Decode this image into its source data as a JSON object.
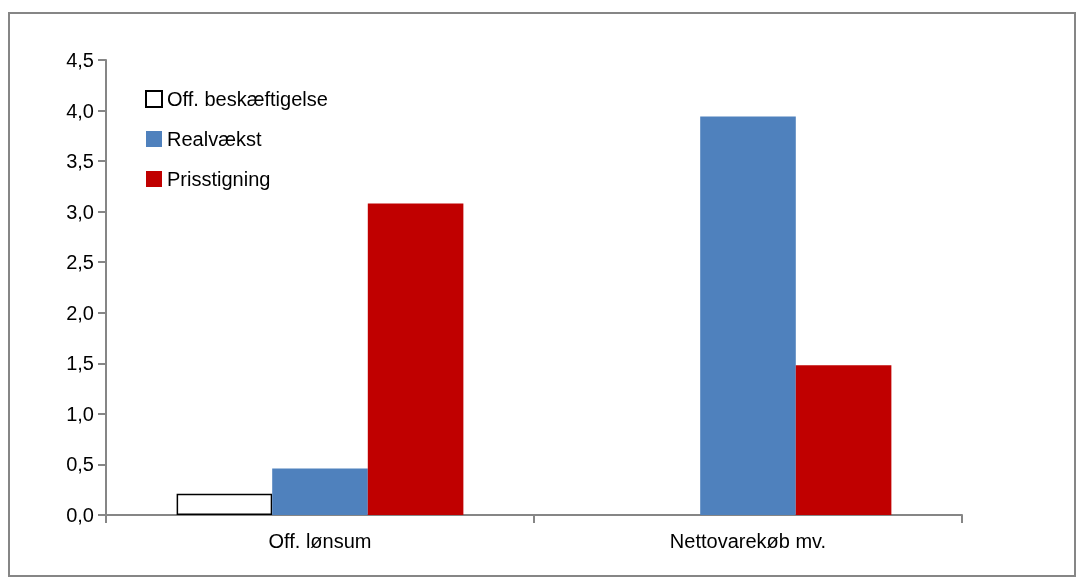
{
  "chart_data": {
    "type": "bar",
    "categories": [
      "Off. lønsum",
      "Nettovarekøb mv."
    ],
    "series": [
      {
        "name": "Off. beskæftigelse",
        "color": "#ffffff",
        "values": [
          0.21,
          null
        ]
      },
      {
        "name": "Realvækst",
        "color": "#4f81bd",
        "values": [
          0.46,
          3.94
        ]
      },
      {
        "name": "Prisstigning",
        "color": "#c00000",
        "values": [
          3.08,
          1.48
        ]
      }
    ],
    "ylim": [
      0,
      4.5
    ],
    "yticks": [
      {
        "value": 0,
        "label": "0,0"
      },
      {
        "value": 0.5,
        "label": "0,5"
      },
      {
        "value": 1,
        "label": "1,0"
      },
      {
        "value": 1.5,
        "label": "1,5"
      },
      {
        "value": 2,
        "label": "2,0"
      },
      {
        "value": 2.5,
        "label": "2,5"
      },
      {
        "value": 3,
        "label": "3,0"
      },
      {
        "value": 3.5,
        "label": "3,5"
      },
      {
        "value": 4,
        "label": "4,0"
      },
      {
        "value": 4.5,
        "label": "4,5"
      }
    ],
    "grid": false,
    "legend": "top left"
  }
}
